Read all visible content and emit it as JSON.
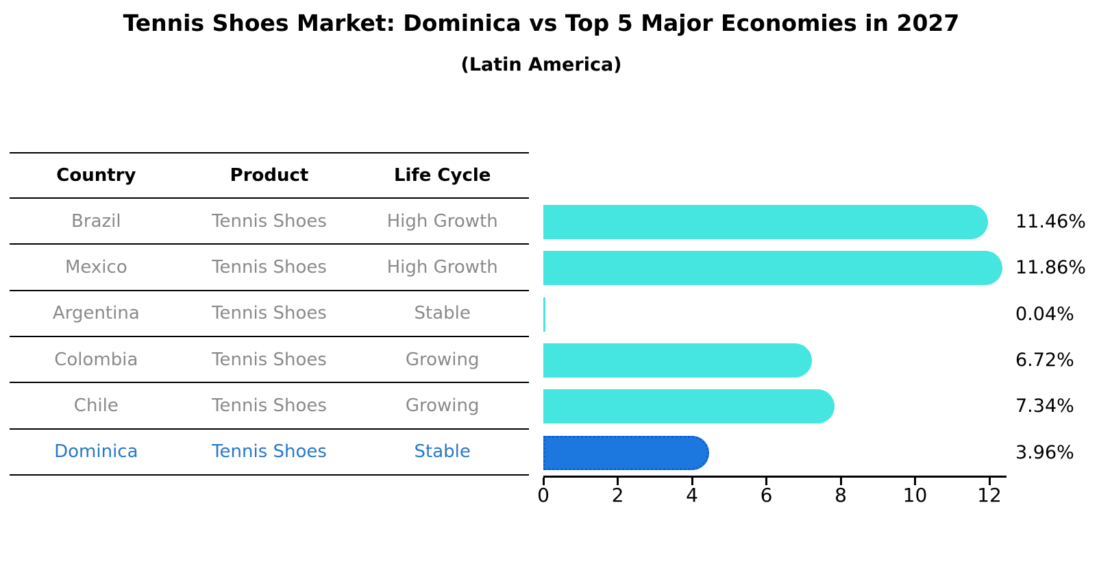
{
  "title": "Tennis Shoes Market: Dominica vs Top 5 Major Economies in 2027",
  "subtitle": "(Latin America)",
  "table": {
    "headers": [
      "Country",
      "Product",
      "Life Cycle"
    ],
    "rows": [
      {
        "country": "Brazil",
        "product": "Tennis Shoes",
        "life_cycle": "High Growth",
        "highlighted": false
      },
      {
        "country": "Mexico",
        "product": "Tennis Shoes",
        "life_cycle": "High Growth",
        "highlighted": false
      },
      {
        "country": "Argentina",
        "product": "Tennis Shoes",
        "life_cycle": "Stable",
        "highlighted": false
      },
      {
        "country": "Colombia",
        "product": "Tennis Shoes",
        "life_cycle": "Growing",
        "highlighted": false
      },
      {
        "country": "Chile",
        "product": "Tennis Shoes",
        "life_cycle": "Growing",
        "highlighted": false
      },
      {
        "country": "Dominica",
        "product": "Tennis Shoes",
        "life_cycle": "Stable",
        "highlighted": true
      }
    ]
  },
  "chart_data": {
    "type": "bar",
    "orientation": "horizontal",
    "title": "Tennis Shoes Market: Dominica vs Top 5 Major Economies in 2027",
    "subtitle": "(Latin America)",
    "categories": [
      "Brazil",
      "Mexico",
      "Argentina",
      "Colombia",
      "Chile",
      "Dominica"
    ],
    "values": [
      11.46,
      11.86,
      0.04,
      6.72,
      7.34,
      3.96
    ],
    "value_labels": [
      "11.46%",
      "11.86%",
      "0.04%",
      "6.72%",
      "7.34%",
      "3.96%"
    ],
    "xlim": [
      0,
      12
    ],
    "xticks": [
      0,
      2,
      4,
      6,
      8,
      10,
      12
    ],
    "grid": false,
    "legend": false,
    "highlight_index": 5
  },
  "colors": {
    "bar": "#45E6E0",
    "highlight_bar": "#1C78DF",
    "highlight_border": "#0E5FD4",
    "highlight_text": "#2878C8",
    "muted_text": "#8A8A8A",
    "axis": "#000000"
  }
}
